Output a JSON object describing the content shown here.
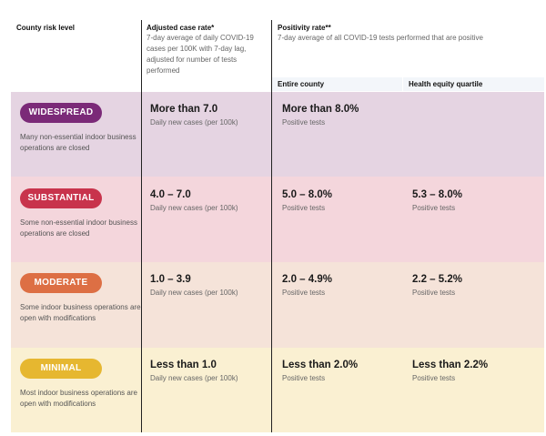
{
  "headers": {
    "county_risk": "County risk level",
    "case_rate_title": "Adjusted case rate*",
    "case_rate_desc": "7-day average of daily COVID-19 cases per 100K with 7-day lag, adjusted for number of tests performed",
    "positivity_title": "Positivity rate**",
    "positivity_desc": "7-day average of all COVID-19 tests performed that are positive",
    "entire_county": "Entire county",
    "health_equity": "Health equity quartile"
  },
  "colors": {
    "widespread": "#7b2a78",
    "substantial": "#c8334c",
    "moderate": "#dd6f44",
    "minimal": "#e6b730"
  },
  "tiers": [
    {
      "label": "WIDESPREAD",
      "description": "Many non-essential indoor business operations are closed",
      "case_rate": "More than 7.0",
      "case_unit": "Daily new cases (per 100k)",
      "county_positivity": "More than 8.0%",
      "county_unit": "Positive tests",
      "equity_positivity": "",
      "equity_unit": ""
    },
    {
      "label": "SUBSTANTIAL",
      "description": "Some non-essential indoor business operations are closed",
      "case_rate": "4.0 – 7.0",
      "case_unit": "Daily new cases (per 100k)",
      "county_positivity": "5.0 – 8.0%",
      "county_unit": "Positive tests",
      "equity_positivity": "5.3 – 8.0%",
      "equity_unit": "Positive tests"
    },
    {
      "label": "MODERATE",
      "description": "Some indoor business operations are open with modifications",
      "case_rate": "1.0 – 3.9",
      "case_unit": "Daily new cases (per 100k)",
      "county_positivity": "2.0 – 4.9%",
      "county_unit": "Positive tests",
      "equity_positivity": "2.2 – 5.2%",
      "equity_unit": "Positive tests"
    },
    {
      "label": "MINIMAL",
      "description": "Most indoor business operations are open with modifications",
      "case_rate": "Less than 1.0",
      "case_unit": "Daily new cases (per 100k)",
      "county_positivity": "Less than 2.0%",
      "county_unit": "Positive tests",
      "equity_positivity": "Less than 2.2%",
      "equity_unit": "Positive tests"
    }
  ]
}
